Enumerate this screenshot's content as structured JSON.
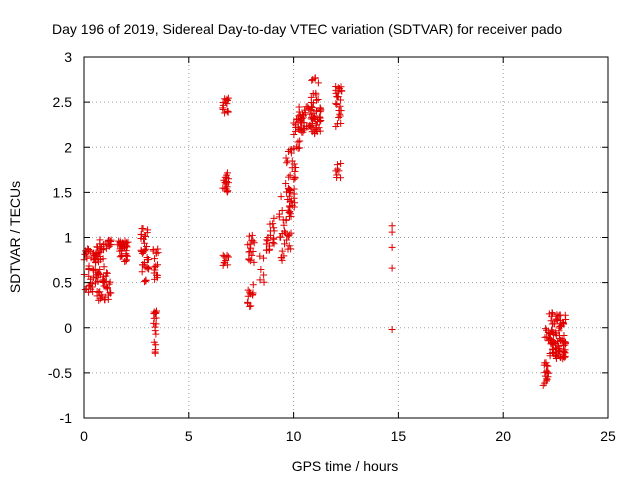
{
  "chart_data": {
    "type": "scatter",
    "title": "Day 196 of 2019, Sidereal Day-to-day VTEC variation (SDTVAR) for receiver pado",
    "xlabel": "GPS time / hours",
    "ylabel": "SDTVAR / TECUs",
    "xlim": [
      0,
      25
    ],
    "ylim": [
      -1,
      3
    ],
    "xticks": [
      0,
      5,
      10,
      15,
      20,
      25
    ],
    "yticks": [
      -1,
      -0.5,
      0,
      0.5,
      1,
      1.5,
      2,
      2.5,
      3
    ],
    "xtick_labels": [
      "0",
      "5",
      "10",
      "15",
      "20",
      "25"
    ],
    "ytick_labels": [
      "-1",
      "-0.5",
      "0",
      "0.5",
      "1",
      "1.5",
      "2",
      "2.5",
      "3"
    ],
    "grid": true,
    "marker": "plus",
    "color": "#e00000",
    "clusters": [
      {
        "x": [
          0.0,
          0.25
        ],
        "y": [
          0.4,
          0.9
        ],
        "n": 14
      },
      {
        "x": [
          0.2,
          0.7
        ],
        "y": [
          0.3,
          0.85
        ],
        "n": 30
      },
      {
        "x": [
          0.6,
          1.3
        ],
        "y": [
          0.3,
          0.98
        ],
        "n": 70
      },
      {
        "x": [
          1.6,
          2.1
        ],
        "y": [
          0.72,
          0.98
        ],
        "n": 34
      },
      {
        "x": [
          2.7,
          3.1
        ],
        "y": [
          0.5,
          1.1
        ],
        "n": 34
      },
      {
        "x": [
          3.3,
          3.55
        ],
        "y": [
          0.5,
          0.9
        ],
        "n": 16
      },
      {
        "x": [
          3.3,
          3.5
        ],
        "y": [
          -0.32,
          0.2
        ],
        "n": 18
      },
      {
        "x": [
          6.6,
          6.9
        ],
        "y": [
          2.37,
          2.55
        ],
        "n": 14
      },
      {
        "x": [
          6.6,
          6.95
        ],
        "y": [
          1.5,
          1.72
        ],
        "n": 18
      },
      {
        "x": [
          6.6,
          6.9
        ],
        "y": [
          0.68,
          0.82
        ],
        "n": 10
      },
      {
        "x": [
          7.8,
          8.15
        ],
        "y": [
          0.72,
          1.03
        ],
        "n": 16
      },
      {
        "x": [
          7.8,
          8.1
        ],
        "y": [
          0.2,
          0.48
        ],
        "n": 12
      },
      {
        "x": [
          8.3,
          8.6
        ],
        "y": [
          0.45,
          0.82
        ],
        "n": 6
      },
      {
        "x": [
          8.7,
          9.1
        ],
        "y": [
          0.85,
          1.22
        ],
        "n": 20
      },
      {
        "x": [
          9.3,
          9.9
        ],
        "y": [
          0.72,
          1.5
        ],
        "n": 36
      },
      {
        "x": [
          9.6,
          10.1
        ],
        "y": [
          1.3,
          2.0
        ],
        "n": 34
      },
      {
        "x": [
          10.0,
          10.3
        ],
        "y": [
          1.95,
          2.35
        ],
        "n": 14
      },
      {
        "x": [
          10.2,
          11.3
        ],
        "y": [
          2.15,
          2.45
        ],
        "n": 70
      },
      {
        "x": [
          10.8,
          11.2
        ],
        "y": [
          2.4,
          2.78
        ],
        "n": 14
      },
      {
        "x": [
          12.0,
          12.3
        ],
        "y": [
          2.2,
          2.72
        ],
        "n": 24
      },
      {
        "x": [
          12.0,
          12.3
        ],
        "y": [
          1.65,
          1.82
        ],
        "n": 8
      }
    ],
    "points": [
      [
        14.7,
        1.13
      ],
      [
        14.7,
        1.06
      ],
      [
        14.7,
        0.89
      ],
      [
        14.7,
        0.66
      ],
      [
        14.7,
        -0.02
      ]
    ],
    "late_clusters": [
      {
        "x": [
          21.9,
          22.2
        ],
        "y": [
          -0.75,
          -0.38
        ],
        "n": 16
      },
      {
        "x": [
          21.9,
          22.3
        ],
        "y": [
          -0.15,
          0.08
        ],
        "n": 10
      },
      {
        "x": [
          22.2,
          23.0
        ],
        "y": [
          -0.35,
          0.18
        ],
        "n": 90
      }
    ]
  }
}
